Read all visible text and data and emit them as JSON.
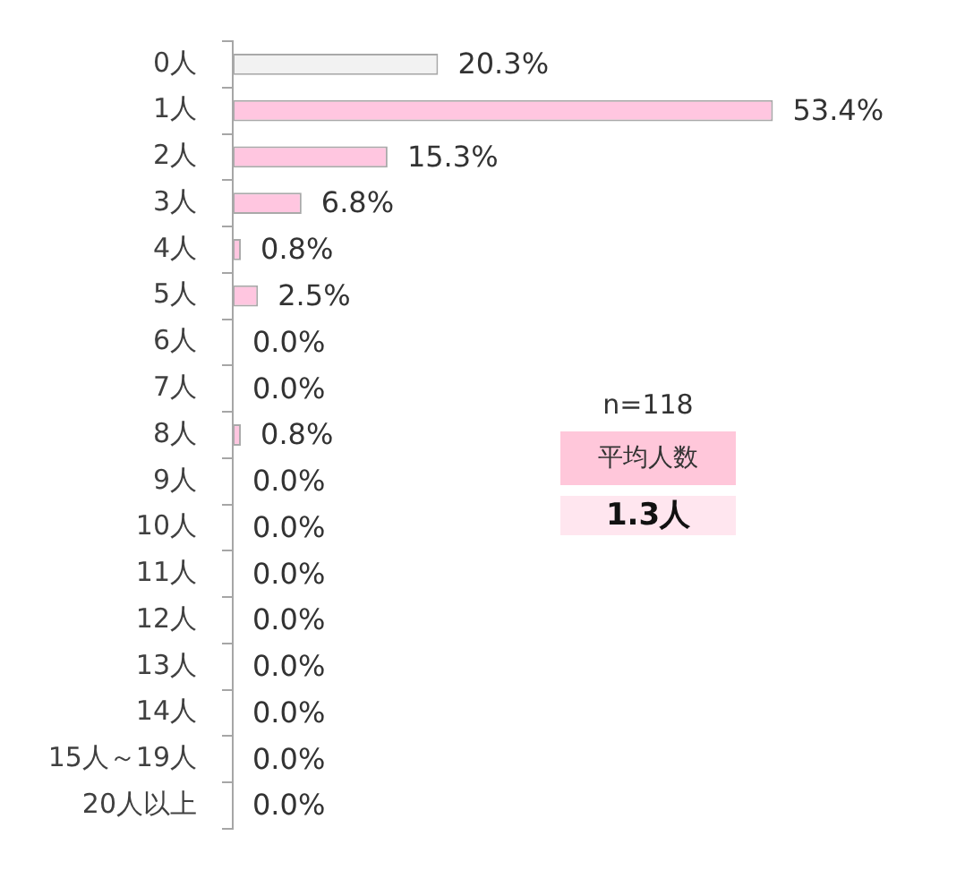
{
  "chart_data": {
    "type": "bar",
    "orientation": "horizontal",
    "categories": [
      "0人",
      "1人",
      "2人",
      "3人",
      "4人",
      "5人",
      "6人",
      "7人",
      "8人",
      "9人",
      "10人",
      "11人",
      "12人",
      "13人",
      "14人",
      "15人～19人",
      "20人以上"
    ],
    "values": [
      20.3,
      53.4,
      15.3,
      6.8,
      0.8,
      2.5,
      0.0,
      0.0,
      0.8,
      0.0,
      0.0,
      0.0,
      0.0,
      0.0,
      0.0,
      0.0,
      0.0
    ],
    "colors": [
      "#f2f2f2",
      "#ffc6e0",
      "#ffc6e0",
      "#ffc6e0",
      "#ffc6e0",
      "#ffc6e0",
      "#ffc6e0",
      "#ffc6e0",
      "#ffc6e0",
      "#ffc6e0",
      "#ffc6e0",
      "#ffc6e0",
      "#ffc6e0",
      "#ffc6e0",
      "#ffc6e0",
      "#ffc6e0",
      "#ffc6e0"
    ],
    "value_labels": [
      "20.3%",
      "53.4%",
      "15.3%",
      "6.8%",
      "0.8%",
      "2.5%",
      "0.0%",
      "0.0%",
      "0.8%",
      "0.0%",
      "0.0%",
      "0.0%",
      "0.0%",
      "0.0%",
      "0.0%",
      "0.0%",
      "0.0%"
    ],
    "annotations": [
      "n=118",
      "平均人数",
      "1.3人"
    ]
  }
}
